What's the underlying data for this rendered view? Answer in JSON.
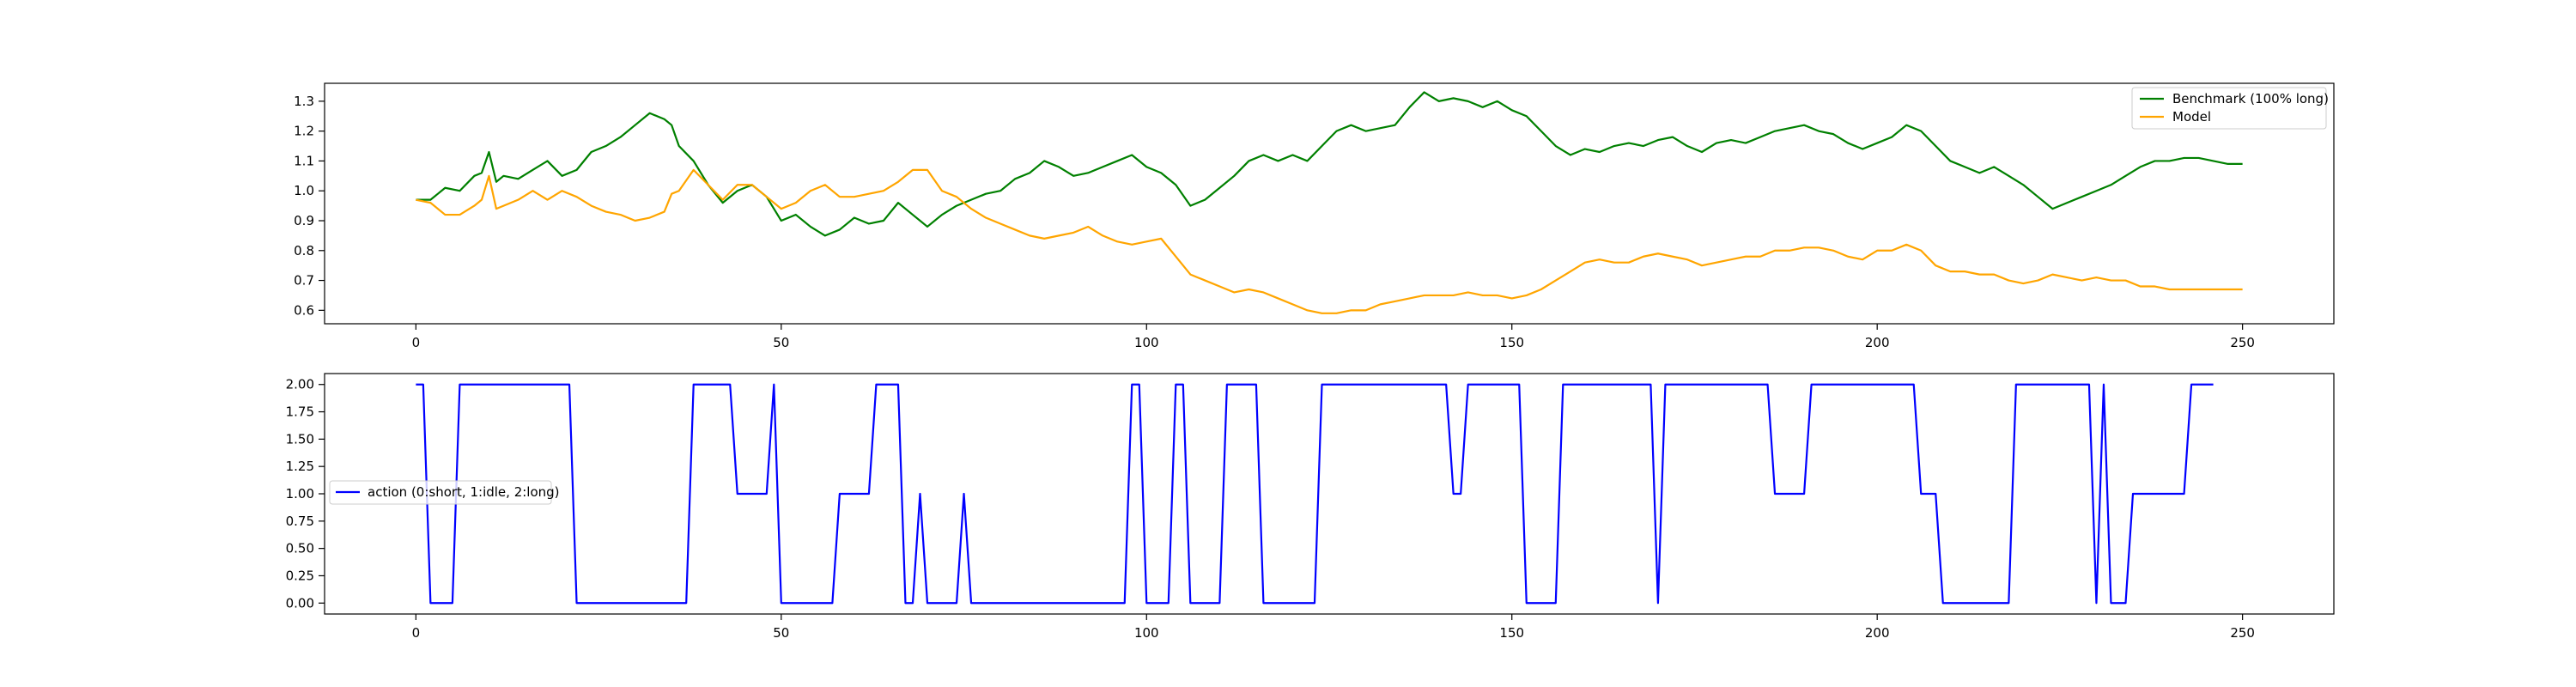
{
  "chart_data": [
    {
      "type": "line",
      "title": "",
      "xlabel": "",
      "ylabel": "",
      "xlim": [
        -12.5,
        262.5
      ],
      "ylim": [
        0.555,
        1.36
      ],
      "xticks": [
        0,
        50,
        100,
        150,
        200,
        250
      ],
      "xtick_labels": [
        "0",
        "50",
        "100",
        "150",
        "200",
        "250"
      ],
      "yticks": [
        0.6,
        0.7,
        0.8,
        0.9,
        1.0,
        1.1,
        1.2,
        1.3
      ],
      "ytick_labels": [
        "0.6",
        "0.7",
        "0.8",
        "0.9",
        "1.0",
        "1.1",
        "1.2",
        "1.3"
      ],
      "grid": false,
      "legend_position": "upper right",
      "series": [
        {
          "name": "Benchmark (100% long)",
          "color": "#008000",
          "x": [
            0,
            2,
            4,
            6,
            8,
            9,
            10,
            11,
            12,
            14,
            16,
            18,
            20,
            22,
            24,
            26,
            28,
            30,
            32,
            34,
            35,
            36,
            38,
            40,
            42,
            44,
            46,
            48,
            50,
            52,
            54,
            56,
            58,
            60,
            62,
            64,
            66,
            68,
            70,
            72,
            74,
            76,
            78,
            80,
            82,
            84,
            86,
            88,
            90,
            92,
            94,
            96,
            98,
            100,
            102,
            104,
            106,
            108,
            110,
            112,
            114,
            116,
            118,
            120,
            122,
            124,
            126,
            128,
            130,
            132,
            134,
            136,
            138,
            140,
            142,
            144,
            146,
            148,
            150,
            152,
            154,
            156,
            158,
            160,
            162,
            164,
            166,
            168,
            170,
            172,
            174,
            176,
            178,
            180,
            182,
            184,
            186,
            188,
            190,
            192,
            194,
            196,
            198,
            200,
            202,
            204,
            206,
            208,
            210,
            212,
            214,
            216,
            218,
            220,
            222,
            224,
            226,
            228,
            230,
            232,
            234,
            236,
            238,
            240,
            242,
            244,
            246,
            248,
            250
          ],
          "y": [
            0.97,
            0.97,
            1.01,
            1.0,
            1.05,
            1.06,
            1.13,
            1.03,
            1.05,
            1.04,
            1.07,
            1.1,
            1.05,
            1.07,
            1.13,
            1.15,
            1.18,
            1.22,
            1.26,
            1.24,
            1.22,
            1.15,
            1.1,
            1.02,
            0.96,
            1.0,
            1.02,
            0.98,
            0.9,
            0.92,
            0.88,
            0.85,
            0.87,
            0.91,
            0.89,
            0.9,
            0.96,
            0.92,
            0.88,
            0.92,
            0.95,
            0.97,
            0.99,
            1.0,
            1.04,
            1.06,
            1.1,
            1.08,
            1.05,
            1.06,
            1.08,
            1.1,
            1.12,
            1.08,
            1.06,
            1.02,
            0.95,
            0.97,
            1.01,
            1.05,
            1.1,
            1.12,
            1.1,
            1.12,
            1.1,
            1.15,
            1.2,
            1.22,
            1.2,
            1.21,
            1.22,
            1.28,
            1.33,
            1.3,
            1.31,
            1.3,
            1.28,
            1.3,
            1.27,
            1.25,
            1.2,
            1.15,
            1.12,
            1.14,
            1.13,
            1.15,
            1.16,
            1.15,
            1.17,
            1.18,
            1.15,
            1.13,
            1.16,
            1.17,
            1.16,
            1.18,
            1.2,
            1.21,
            1.22,
            1.2,
            1.19,
            1.16,
            1.14,
            1.16,
            1.18,
            1.22,
            1.2,
            1.15,
            1.1,
            1.08,
            1.06,
            1.08,
            1.05,
            1.02,
            0.98,
            0.94,
            0.96,
            0.98,
            1.0,
            1.02,
            1.05,
            1.08,
            1.1,
            1.1,
            1.11,
            1.11,
            1.1,
            1.09,
            1.09
          ]
        },
        {
          "name": "Model",
          "color": "#ffa500",
          "x": [
            0,
            2,
            4,
            6,
            8,
            9,
            10,
            11,
            12,
            14,
            16,
            18,
            20,
            22,
            24,
            26,
            28,
            30,
            32,
            34,
            35,
            36,
            38,
            40,
            42,
            44,
            46,
            48,
            50,
            52,
            54,
            56,
            58,
            60,
            62,
            64,
            66,
            68,
            70,
            72,
            74,
            76,
            78,
            80,
            82,
            84,
            86,
            88,
            90,
            92,
            94,
            96,
            98,
            100,
            102,
            104,
            106,
            108,
            110,
            112,
            114,
            116,
            118,
            120,
            122,
            124,
            126,
            128,
            130,
            132,
            134,
            136,
            138,
            140,
            142,
            144,
            146,
            148,
            150,
            152,
            154,
            156,
            158,
            160,
            162,
            164,
            166,
            168,
            170,
            172,
            174,
            176,
            178,
            180,
            182,
            184,
            186,
            188,
            190,
            192,
            194,
            196,
            198,
            200,
            202,
            204,
            206,
            208,
            210,
            212,
            214,
            216,
            218,
            220,
            222,
            224,
            226,
            228,
            230,
            232,
            234,
            236,
            238,
            240,
            242,
            244,
            246,
            248,
            250
          ],
          "y": [
            0.97,
            0.96,
            0.92,
            0.92,
            0.95,
            0.97,
            1.05,
            0.94,
            0.95,
            0.97,
            1.0,
            0.97,
            1.0,
            0.98,
            0.95,
            0.93,
            0.92,
            0.9,
            0.91,
            0.93,
            0.99,
            1.0,
            1.07,
            1.02,
            0.97,
            1.02,
            1.02,
            0.98,
            0.94,
            0.96,
            1.0,
            1.02,
            0.98,
            0.98,
            0.99,
            1.0,
            1.03,
            1.07,
            1.07,
            1.0,
            0.98,
            0.94,
            0.91,
            0.89,
            0.87,
            0.85,
            0.84,
            0.85,
            0.86,
            0.88,
            0.85,
            0.83,
            0.82,
            0.83,
            0.84,
            0.78,
            0.72,
            0.7,
            0.68,
            0.66,
            0.67,
            0.66,
            0.64,
            0.62,
            0.6,
            0.59,
            0.59,
            0.6,
            0.6,
            0.62,
            0.63,
            0.64,
            0.65,
            0.65,
            0.65,
            0.66,
            0.65,
            0.65,
            0.64,
            0.65,
            0.67,
            0.7,
            0.73,
            0.76,
            0.77,
            0.76,
            0.76,
            0.78,
            0.79,
            0.78,
            0.77,
            0.75,
            0.76,
            0.77,
            0.78,
            0.78,
            0.8,
            0.8,
            0.81,
            0.81,
            0.8,
            0.78,
            0.77,
            0.8,
            0.8,
            0.82,
            0.8,
            0.75,
            0.73,
            0.73,
            0.72,
            0.72,
            0.7,
            0.69,
            0.7,
            0.72,
            0.71,
            0.7,
            0.71,
            0.7,
            0.7,
            0.68,
            0.68,
            0.67,
            0.67,
            0.67,
            0.67,
            0.67,
            0.67
          ]
        }
      ]
    },
    {
      "type": "line",
      "title": "",
      "xlabel": "",
      "ylabel": "",
      "xlim": [
        -12.5,
        262.5
      ],
      "ylim": [
        -0.1,
        2.1
      ],
      "xticks": [
        0,
        50,
        100,
        150,
        200,
        250
      ],
      "xtick_labels": [
        "0",
        "50",
        "100",
        "150",
        "200",
        "250"
      ],
      "yticks": [
        0.0,
        0.25,
        0.5,
        0.75,
        1.0,
        1.25,
        1.5,
        1.75,
        2.0
      ],
      "ytick_labels": [
        "0.00",
        "0.25",
        "0.50",
        "0.75",
        "1.00",
        "1.25",
        "1.50",
        "1.75",
        "2.00"
      ],
      "grid": false,
      "legend_position": "center left",
      "series": [
        {
          "name": "action (0:short, 1:idle, 2:long)",
          "color": "#0000ff",
          "values": [
            2,
            2,
            0,
            0,
            0,
            0,
            2,
            2,
            2,
            2,
            2,
            2,
            2,
            2,
            2,
            2,
            2,
            2,
            2,
            2,
            2,
            2,
            0,
            0,
            0,
            0,
            0,
            0,
            0,
            0,
            0,
            0,
            0,
            0,
            0,
            0,
            0,
            0,
            2,
            2,
            2,
            2,
            2,
            2,
            1,
            1,
            1,
            1,
            1,
            2,
            0,
            0,
            0,
            0,
            0,
            0,
            0,
            0,
            1,
            1,
            1,
            1,
            1,
            2,
            2,
            2,
            2,
            0,
            0,
            1,
            0,
            0,
            0,
            0,
            0,
            1,
            0,
            0,
            0,
            0,
            0,
            0,
            0,
            0,
            0,
            0,
            0,
            0,
            0,
            0,
            0,
            0,
            0,
            0,
            0,
            0,
            0,
            0,
            2,
            2,
            0,
            0,
            0,
            0,
            2,
            2,
            0,
            0,
            0,
            0,
            0,
            2,
            2,
            2,
            2,
            2,
            0,
            0,
            0,
            0,
            0,
            0,
            0,
            0,
            2,
            2,
            2,
            2,
            2,
            2,
            2,
            2,
            2,
            2,
            2,
            2,
            2,
            2,
            2,
            2,
            2,
            2,
            1,
            1,
            2,
            2,
            2,
            2,
            2,
            2,
            2,
            2,
            0,
            0,
            0,
            0,
            0,
            2,
            2,
            2,
            2,
            2,
            2,
            2,
            2,
            2,
            2,
            2,
            2,
            2,
            0,
            2,
            2,
            2,
            2,
            2,
            2,
            2,
            2,
            2,
            2,
            2,
            2,
            2,
            2,
            2,
            1,
            1,
            1,
            1,
            1,
            2,
            2,
            2,
            2,
            2,
            2,
            2,
            2,
            2,
            2,
            2,
            2,
            2,
            2,
            2,
            1,
            1,
            1,
            0,
            0,
            0,
            0,
            0,
            0,
            0,
            0,
            0,
            0,
            2,
            2,
            2,
            2,
            2,
            2,
            2,
            2,
            2,
            2,
            2,
            0,
            2,
            0,
            0,
            0,
            1,
            1,
            1,
            1,
            1,
            1,
            1,
            1,
            2,
            2,
            2,
            2
          ]
        }
      ]
    }
  ]
}
